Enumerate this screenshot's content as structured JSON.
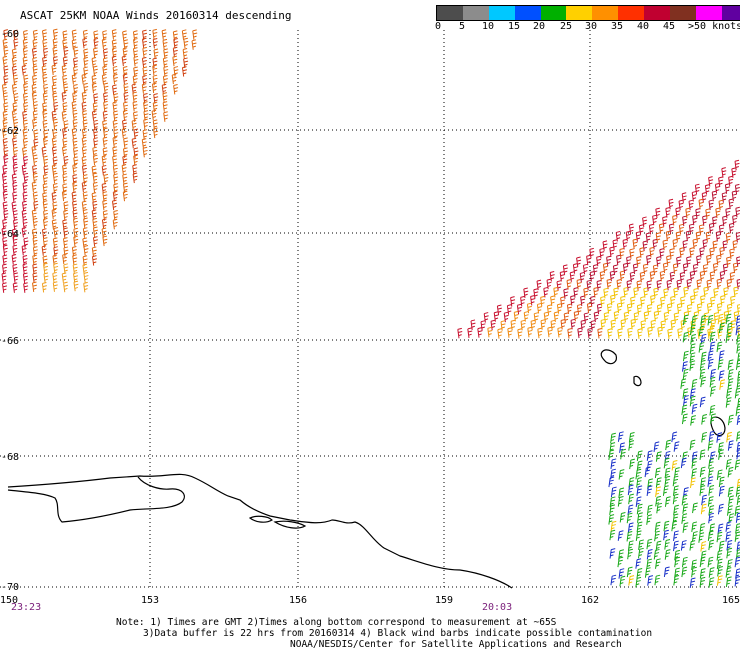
{
  "title": "ASCAT 25KM NOAA Winds 20160314 descending",
  "scale": {
    "colors": [
      "#4d4d4d",
      "#8c8c8c",
      "#00c8ff",
      "#0050ff",
      "#00b000",
      "#ffd000",
      "#ff9000",
      "#ff3000",
      "#c00030",
      "#803020",
      "#ff00ff",
      "#6000a0"
    ],
    "labels": [
      "0",
      "5",
      "10",
      "15",
      "20",
      "25",
      "30",
      "35",
      "40",
      "45",
      ">50 knots"
    ]
  },
  "axes": {
    "lon_labels": [
      "150",
      "153",
      "156",
      "159",
      "162",
      "165"
    ],
    "lat_labels": [
      "-60",
      "-62",
      "-64",
      "-66",
      "-68",
      "-70"
    ]
  },
  "times": [
    "23:23",
    "20:03"
  ],
  "notes": [
    "Note: 1) Times are GMT 2)Times along bottom correspond to measurement at ~65S",
    "3)Data buffer is 22 hrs from 20160314 4) Black wind barbs indicate possible contamination",
    "NOAA/NESDIS/Center for Satellite Applications and Research"
  ]
}
